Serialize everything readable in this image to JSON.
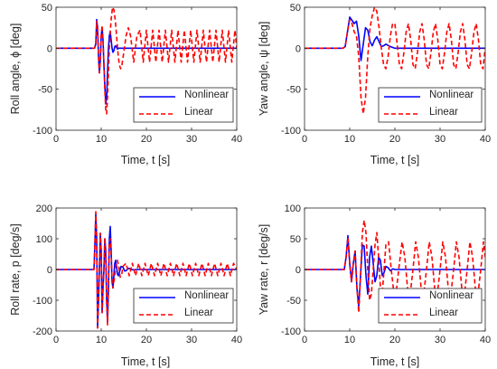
{
  "colors": {
    "nonlinear": "#0000ff",
    "linear": "#ff0000",
    "axis": "#262626",
    "background": "#ffffff"
  },
  "chart_data": [
    {
      "id": "roll-angle",
      "type": "line",
      "title": "",
      "xlabel": "Time, t [s]",
      "ylabel": "Roll angle, ϕ [deg]",
      "xlim": [
        0,
        40
      ],
      "ylim": [
        -100,
        50
      ],
      "xticks": [
        0,
        10,
        20,
        30,
        40
      ],
      "yticks": [
        -100,
        -50,
        0,
        50
      ],
      "grid": false,
      "legend_position": "bottom-right",
      "series": [
        {
          "name": "Nonlinear",
          "color": "#0000ff",
          "dash": "solid",
          "x": [
            0,
            8.5,
            8.8,
            9.0,
            9.2,
            9.4,
            9.6,
            9.8,
            10.0,
            10.2,
            10.4,
            10.6,
            10.8,
            11.0,
            11.2,
            11.4,
            11.6,
            11.8,
            12.0,
            12.2,
            12.4,
            12.6,
            12.8,
            13.0,
            13.2,
            13.4,
            13.6,
            13.8,
            14.0,
            14.4,
            14.8,
            15.5,
            16.5,
            18,
            20,
            40
          ],
          "y": [
            0,
            0,
            5,
            35,
            25,
            -10,
            -30,
            -15,
            15,
            25,
            10,
            -20,
            -45,
            -68,
            -60,
            -30,
            0,
            15,
            20,
            10,
            0,
            -5,
            -3,
            2,
            3,
            1,
            -1,
            0,
            0,
            0,
            0,
            0,
            0,
            0,
            0,
            0
          ]
        },
        {
          "name": "Linear",
          "color": "#ff0000",
          "dash": "dashed",
          "x": [
            0,
            8.5,
            8.8,
            9.0,
            9.2,
            9.4,
            9.6,
            9.8,
            10.0,
            10.2,
            10.4,
            10.6,
            10.8,
            11.0,
            11.2,
            11.4,
            11.6,
            11.8,
            12.0,
            12.2,
            12.5,
            12.8,
            13.1,
            13.4,
            13.7,
            14.0,
            14.3,
            14.6,
            15.0,
            15.5,
            16.0,
            16.5,
            17.2,
            17.9,
            18.6,
            19.3,
            20.0,
            20.7,
            21.4,
            22.1,
            22.8,
            23.5,
            24.2,
            24.9,
            25.6,
            26.3,
            27.0,
            27.7,
            28.4,
            29.1,
            29.8,
            30.5,
            31.2,
            31.9,
            32.6,
            33.3,
            34.0,
            34.7,
            35.4,
            36.1,
            36.8,
            37.5,
            38.2,
            38.9,
            39.6,
            40
          ],
          "y": [
            0,
            0,
            5,
            33,
            25,
            -10,
            -30,
            -15,
            15,
            28,
            10,
            -20,
            -50,
            -75,
            -80,
            -60,
            -30,
            0,
            20,
            35,
            50,
            47,
            35,
            15,
            -5,
            -20,
            -25,
            -20,
            -5,
            15,
            25,
            15,
            -17,
            15,
            22,
            -17,
            22,
            -17,
            22,
            -17,
            22,
            -17,
            22,
            -17,
            22,
            -17,
            22,
            -17,
            22,
            -17,
            22,
            -17,
            22,
            -17,
            22,
            -17,
            22,
            -17,
            22,
            -17,
            22,
            -17,
            22,
            -17,
            22,
            0
          ]
        }
      ]
    },
    {
      "id": "yaw-angle",
      "type": "line",
      "title": "",
      "xlabel": "Time, t [s]",
      "ylabel": "Yaw angle, ψ [deg]",
      "xlim": [
        0,
        40
      ],
      "ylim": [
        -100,
        50
      ],
      "xticks": [
        0,
        10,
        20,
        30,
        40
      ],
      "yticks": [
        -100,
        -50,
        0,
        50
      ],
      "grid": false,
      "legend_position": "bottom-right",
      "series": [
        {
          "name": "Nonlinear",
          "color": "#0000ff",
          "dash": "solid",
          "x": [
            0,
            8.5,
            9.0,
            9.5,
            10.0,
            10.5,
            11.0,
            11.5,
            12.0,
            12.5,
            13.0,
            13.5,
            14.0,
            14.5,
            15.0,
            15.5,
            16.0,
            16.5,
            17.0,
            17.5,
            18.0,
            19.0,
            20.0,
            22.0,
            40
          ],
          "y": [
            0,
            0,
            2,
            20,
            38,
            34,
            30,
            33,
            15,
            -15,
            5,
            25,
            22,
            8,
            3,
            10,
            14,
            8,
            2,
            3,
            5,
            2,
            0,
            0,
            0
          ]
        },
        {
          "name": "Linear",
          "color": "#ff0000",
          "dash": "dashed",
          "x": [
            0,
            8.5,
            9.0,
            9.5,
            10.0,
            10.5,
            11.0,
            11.5,
            12.0,
            12.5,
            13.0,
            13.5,
            14.0,
            14.5,
            15.0,
            15.5,
            16.0,
            16.5,
            17.0,
            17.5,
            18.0,
            18.5,
            19.0,
            19.5,
            20.0,
            20.5,
            21.0,
            21.5,
            22.0,
            22.5,
            23.0,
            23.5,
            24.0,
            24.5,
            25.0,
            25.5,
            26.0,
            26.5,
            27.0,
            27.5,
            28.0,
            28.5,
            29.0,
            29.5,
            30.0,
            30.5,
            31.0,
            31.5,
            32.0,
            32.5,
            33.0,
            33.5,
            34.0,
            34.5,
            35.0,
            35.5,
            36.0,
            36.5,
            37.0,
            37.5,
            38.0,
            38.5,
            39.0,
            39.5,
            40
          ],
          "y": [
            0,
            0,
            2,
            20,
            35,
            30,
            20,
            15,
            -10,
            -60,
            -80,
            -60,
            -10,
            25,
            40,
            50,
            45,
            25,
            0,
            -20,
            -25,
            -10,
            15,
            30,
            30,
            5,
            -20,
            -25,
            -5,
            20,
            30,
            10,
            -20,
            -25,
            -5,
            20,
            30,
            10,
            -20,
            -25,
            -5,
            20,
            30,
            10,
            -20,
            -25,
            -5,
            20,
            30,
            10,
            -20,
            -25,
            -5,
            20,
            30,
            10,
            -20,
            -25,
            -5,
            20,
            30,
            10,
            -20,
            -25,
            0
          ]
        }
      ]
    },
    {
      "id": "roll-rate",
      "type": "line",
      "title": "",
      "xlabel": "Time, t [s]",
      "ylabel": "Roll rate, p [deg/s]",
      "xlim": [
        0,
        40
      ],
      "ylim": [
        -200,
        200
      ],
      "xticks": [
        0,
        10,
        20,
        30,
        40
      ],
      "yticks": [
        -200,
        -100,
        0,
        100,
        200
      ],
      "grid": false,
      "legend_position": "bottom-right",
      "series": [
        {
          "name": "Nonlinear",
          "color": "#0000ff",
          "dash": "solid",
          "x": [
            0,
            8.4,
            8.6,
            8.8,
            9.0,
            9.2,
            9.4,
            9.6,
            9.8,
            10.0,
            10.2,
            10.4,
            10.6,
            10.8,
            11.0,
            11.2,
            11.4,
            11.6,
            11.8,
            12.0,
            12.2,
            12.4,
            12.6,
            12.8,
            13.0,
            13.2,
            13.4,
            13.6,
            13.8,
            14.0,
            14.4,
            14.8,
            15.2,
            15.6,
            16.0,
            16.5,
            17.0,
            18.0,
            19.0,
            20.0,
            40
          ],
          "y": [
            0,
            0,
            80,
            180,
            100,
            -190,
            -100,
            0,
            118,
            60,
            -140,
            -60,
            0,
            100,
            60,
            -100,
            -170,
            -60,
            100,
            140,
            60,
            -40,
            -60,
            -20,
            20,
            30,
            10,
            -15,
            -20,
            -10,
            10,
            8,
            -5,
            -3,
            4,
            2,
            -1,
            0,
            0,
            0,
            0
          ]
        },
        {
          "name": "Linear",
          "color": "#ff0000",
          "dash": "dashed",
          "x": [
            0,
            8.4,
            8.6,
            8.8,
            9.0,
            9.2,
            9.4,
            9.6,
            9.8,
            10.0,
            10.2,
            10.4,
            10.6,
            10.8,
            11.0,
            11.2,
            11.4,
            11.6,
            11.8,
            12.0,
            12.2,
            12.4,
            12.6,
            12.8,
            13.0,
            13.3,
            13.6,
            13.9,
            14.2,
            14.5,
            14.8,
            15.5,
            16.2,
            16.9,
            17.6,
            18.3,
            19.0,
            19.7,
            20.4,
            21.1,
            21.8,
            22.5,
            23.2,
            23.9,
            24.6,
            25.3,
            26.0,
            26.7,
            27.4,
            28.1,
            28.8,
            29.5,
            30.2,
            30.9,
            31.6,
            32.3,
            33.0,
            33.7,
            34.4,
            35.1,
            35.8,
            36.5,
            37.2,
            37.9,
            38.6,
            39.3,
            40
          ],
          "y": [
            0,
            0,
            80,
            188,
            100,
            -190,
            -100,
            0,
            118,
            60,
            -140,
            -60,
            0,
            100,
            60,
            -100,
            -180,
            -60,
            90,
            100,
            60,
            -40,
            -60,
            -40,
            -20,
            20,
            30,
            10,
            -25,
            -20,
            10,
            20,
            -20,
            20,
            -20,
            20,
            -20,
            20,
            -20,
            20,
            -20,
            20,
            -20,
            20,
            -20,
            20,
            -20,
            20,
            -20,
            20,
            -20,
            20,
            -20,
            20,
            -20,
            20,
            -20,
            20,
            -20,
            20,
            -20,
            20,
            -20,
            20,
            -20,
            20,
            0
          ]
        }
      ]
    },
    {
      "id": "yaw-rate",
      "type": "line",
      "title": "",
      "xlabel": "Time, t [s]",
      "ylabel": "Yaw rate, r [deg/s]",
      "xlim": [
        0,
        40
      ],
      "ylim": [
        -100,
        100
      ],
      "xticks": [
        0,
        10,
        20,
        30,
        40
      ],
      "yticks": [
        -100,
        -50,
        0,
        50,
        100
      ],
      "grid": false,
      "legend_position": "bottom-right",
      "series": [
        {
          "name": "Nonlinear",
          "color": "#0000ff",
          "dash": "solid",
          "x": [
            0,
            8.8,
            9.2,
            9.6,
            10.0,
            10.4,
            10.8,
            11.2,
            11.6,
            12.0,
            12.4,
            12.8,
            13.2,
            13.6,
            14.0,
            14.4,
            14.8,
            15.2,
            15.6,
            16.0,
            16.4,
            16.8,
            17.2,
            17.6,
            18.0,
            18.5,
            19.0,
            19.5,
            20.0,
            21.0,
            40
          ],
          "y": [
            0,
            0,
            20,
            55,
            10,
            -20,
            10,
            30,
            -30,
            -60,
            -10,
            40,
            38,
            -10,
            -40,
            20,
            38,
            10,
            -20,
            -10,
            20,
            15,
            -10,
            -5,
            5,
            3,
            -2,
            1,
            0,
            0,
            0
          ]
        },
        {
          "name": "Linear",
          "color": "#ff0000",
          "dash": "dashed",
          "x": [
            0,
            8.8,
            9.2,
            9.6,
            10.0,
            10.4,
            10.8,
            11.2,
            11.6,
            12.0,
            12.4,
            12.8,
            13.2,
            13.6,
            14.0,
            14.4,
            14.8,
            15.2,
            15.6,
            16.0,
            16.4,
            16.8,
            17.2,
            17.6,
            18.0,
            18.6,
            19.2,
            19.8,
            20.4,
            21.0,
            21.6,
            22.2,
            22.8,
            23.4,
            24.0,
            24.6,
            25.2,
            25.8,
            26.4,
            27.0,
            27.6,
            28.2,
            28.8,
            29.4,
            30.0,
            30.6,
            31.2,
            31.8,
            32.4,
            33.0,
            33.6,
            34.2,
            34.8,
            35.4,
            36.0,
            36.6,
            37.2,
            37.8,
            38.4,
            39.0,
            39.6,
            40
          ],
          "y": [
            0,
            0,
            20,
            52,
            10,
            -20,
            10,
            30,
            -30,
            -70,
            -10,
            60,
            80,
            60,
            0,
            -50,
            -40,
            0,
            40,
            60,
            20,
            -30,
            -40,
            0,
            40,
            45,
            0,
            -40,
            -30,
            10,
            45,
            20,
            -30,
            -40,
            0,
            45,
            20,
            -30,
            -40,
            0,
            45,
            20,
            -30,
            -40,
            0,
            45,
            20,
            -30,
            -40,
            0,
            45,
            20,
            -30,
            -40,
            0,
            45,
            20,
            -30,
            -40,
            0,
            45,
            20
          ]
        }
      ]
    }
  ]
}
